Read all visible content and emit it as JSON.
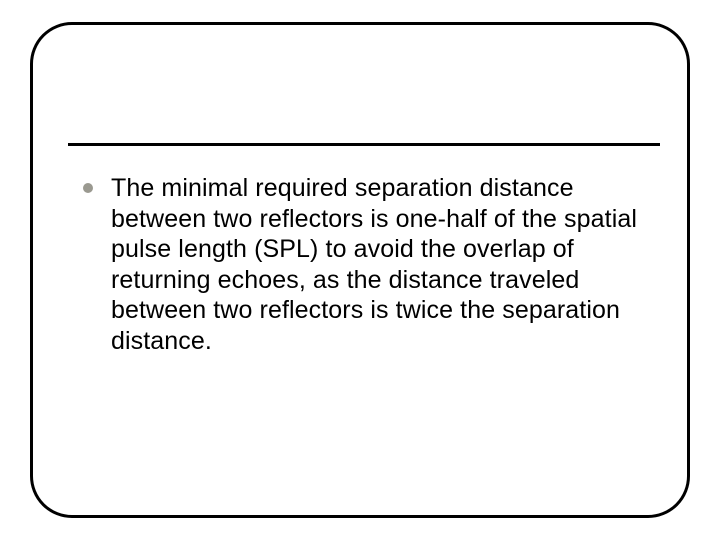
{
  "slide": {
    "frame": {
      "border_color": "#000000",
      "border_width": 3,
      "border_radius": 42,
      "background": "#ffffff"
    },
    "title_underline": {
      "color": "#000000",
      "height": 3
    },
    "bullets": [
      {
        "text": "The minimal required separation distance between two reflectors is one-half of the spatial pulse length (SPL) to avoid the overlap of returning echoes, as the distance traveled between two reflectors is twice the separation distance.",
        "dot_color": "#9a9990",
        "font_size": 25,
        "text_color": "#000000"
      }
    ]
  }
}
